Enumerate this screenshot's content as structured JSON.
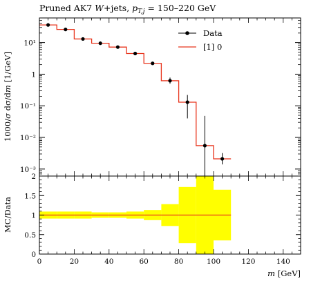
{
  "title": "Pruned AK7 W+jets, p_T,j = 150–220 GeV",
  "title_parts": {
    "main": "Pruned AK7 ",
    "w": "W",
    "jets": "+jets, ",
    "pt": "p",
    "sub": "T,j",
    "range": " = 150–220 GeV"
  },
  "chart_data": [
    {
      "type": "line",
      "scale": "log",
      "ylabel": "1000/σ dσ/dm [1/GeV]",
      "ylabel_parts": {
        "a": "1000/",
        "sigma": "σ",
        "b": " dσ/d",
        "m": "m",
        "c": " [1/GeV]"
      },
      "ylim": [
        0.0006,
        60
      ],
      "yticks": [
        "10⁻³",
        "10⁻²",
        "10⁻¹",
        "1",
        "10¹"
      ],
      "legend_position": "top-right",
      "series": [
        {
          "name": "Data",
          "kind": "points",
          "x": [
            5,
            15,
            25,
            35,
            45,
            55,
            65,
            75,
            85,
            95,
            105
          ],
          "y": [
            36,
            26,
            13,
            9.5,
            7.2,
            4.5,
            2.2,
            0.62,
            0.13,
            0.0055,
            0.0021
          ],
          "yerr_low": [
            34,
            24.5,
            12.3,
            8.8,
            6.8,
            4.2,
            2.0,
            0.5,
            0.04,
            0.0003,
            0.0014
          ],
          "yerr_high": [
            38,
            27.5,
            13.7,
            10.2,
            7.6,
            4.8,
            2.4,
            0.78,
            0.22,
            0.048,
            0.0032
          ]
        },
        {
          "name": "[1] 0",
          "kind": "step",
          "color": "#e8341c",
          "edges": [
            0,
            10,
            20,
            30,
            40,
            50,
            60,
            70,
            80,
            90,
            100,
            110
          ],
          "values": [
            36,
            26,
            13,
            9.5,
            7.2,
            4.5,
            2.2,
            0.62,
            0.13,
            0.0055,
            0.0021
          ]
        }
      ]
    },
    {
      "type": "area",
      "ylabel": "MC/Data",
      "xlabel": "m [GeV]",
      "xlabel_parts": {
        "m": "m",
        "unit": " [GeV]"
      },
      "xlim": [
        0,
        150
      ],
      "ylim": [
        0,
        2
      ],
      "xticks": [
        0,
        20,
        40,
        60,
        80,
        100,
        120,
        140
      ],
      "yticks": [
        "0",
        "0.5",
        "1",
        "1.5",
        "2"
      ],
      "series": [
        {
          "name": "",
          "kind": "band",
          "color": "#ffff00",
          "edges": [
            0,
            10,
            20,
            30,
            40,
            50,
            60,
            70,
            80,
            90,
            100,
            110
          ],
          "low": [
            0.91,
            0.91,
            0.91,
            0.93,
            0.93,
            0.91,
            0.87,
            0.72,
            0.28,
            0.0,
            0.35
          ],
          "high": [
            1.09,
            1.09,
            1.09,
            1.07,
            1.07,
            1.09,
            1.13,
            1.28,
            1.72,
            2.0,
            1.65
          ]
        },
        {
          "name": "[1] 0",
          "kind": "ratio_line",
          "color": "#e8341c",
          "edges": [
            0,
            110
          ],
          "values": [
            1.0
          ]
        }
      ]
    }
  ]
}
